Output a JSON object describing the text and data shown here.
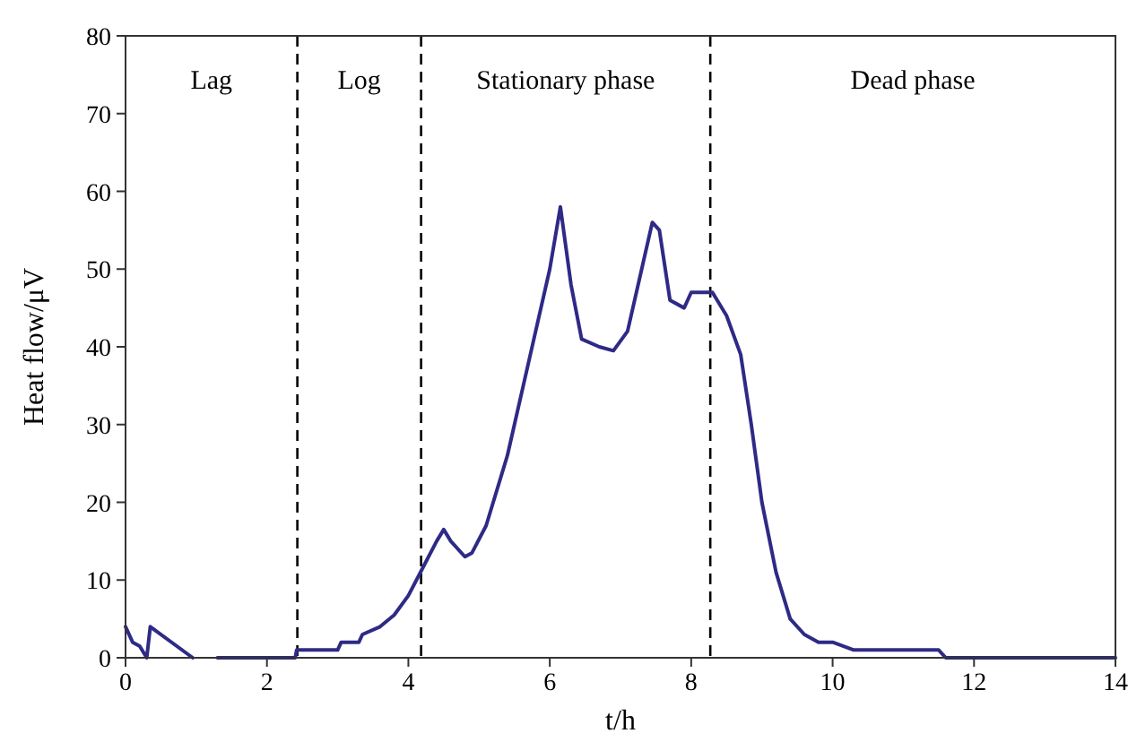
{
  "chart_data": {
    "type": "line",
    "xlabel": "t/h",
    "ylabel": "Heat flow/μV",
    "xlim": [
      0,
      14
    ],
    "ylim": [
      0,
      80
    ],
    "xticks": [
      0,
      2,
      4,
      6,
      8,
      10,
      12,
      14
    ],
    "yticks": [
      0,
      10,
      20,
      30,
      40,
      50,
      60,
      70,
      80
    ],
    "grid": false,
    "marker": "none",
    "line_style": "solid",
    "x": [
      0,
      0.1,
      0.2,
      0.3,
      0.35,
      0.95,
      1.1,
      1.3,
      2.4,
      2.42,
      3.0,
      3.05,
      3.3,
      3.35,
      3.6,
      3.8,
      4.0,
      4.2,
      4.4,
      4.5,
      4.6,
      4.8,
      4.9,
      5.1,
      5.4,
      5.7,
      6.0,
      6.15,
      6.3,
      6.45,
      6.7,
      6.9,
      7.1,
      7.3,
      7.45,
      7.55,
      7.7,
      7.9,
      8.0,
      8.3,
      8.5,
      8.7,
      8.85,
      9.0,
      9.2,
      9.4,
      9.6,
      9.8,
      10.0,
      10.3,
      11.0,
      11.5,
      11.6,
      14
    ],
    "series": [
      {
        "color": "#2e2a86",
        "values": [
          4,
          2,
          1.5,
          0,
          4,
          0,
          null,
          0,
          0,
          1,
          1,
          2,
          2,
          3,
          4,
          5.5,
          8,
          11.5,
          15,
          16.5,
          15,
          13,
          13.5,
          17,
          26,
          38,
          50,
          58,
          48,
          41,
          40,
          39.5,
          42,
          50,
          56,
          55,
          46,
          45,
          47,
          47,
          44,
          39,
          30,
          20,
          11,
          5,
          3,
          2,
          2,
          1,
          1,
          1,
          0,
          0
        ]
      }
    ],
    "ref_lines": [
      {
        "axis": "x",
        "value": 2.43,
        "line_style": "dashed",
        "color": "#000000"
      },
      {
        "axis": "x",
        "value": 4.18,
        "line_style": "dashed",
        "color": "#000000"
      },
      {
        "axis": "x",
        "value": 8.27,
        "line_style": "dashed",
        "color": "#000000"
      }
    ],
    "annotations": [
      "Lag",
      "Log",
      "Stationary phase",
      "Dead phase"
    ]
  }
}
